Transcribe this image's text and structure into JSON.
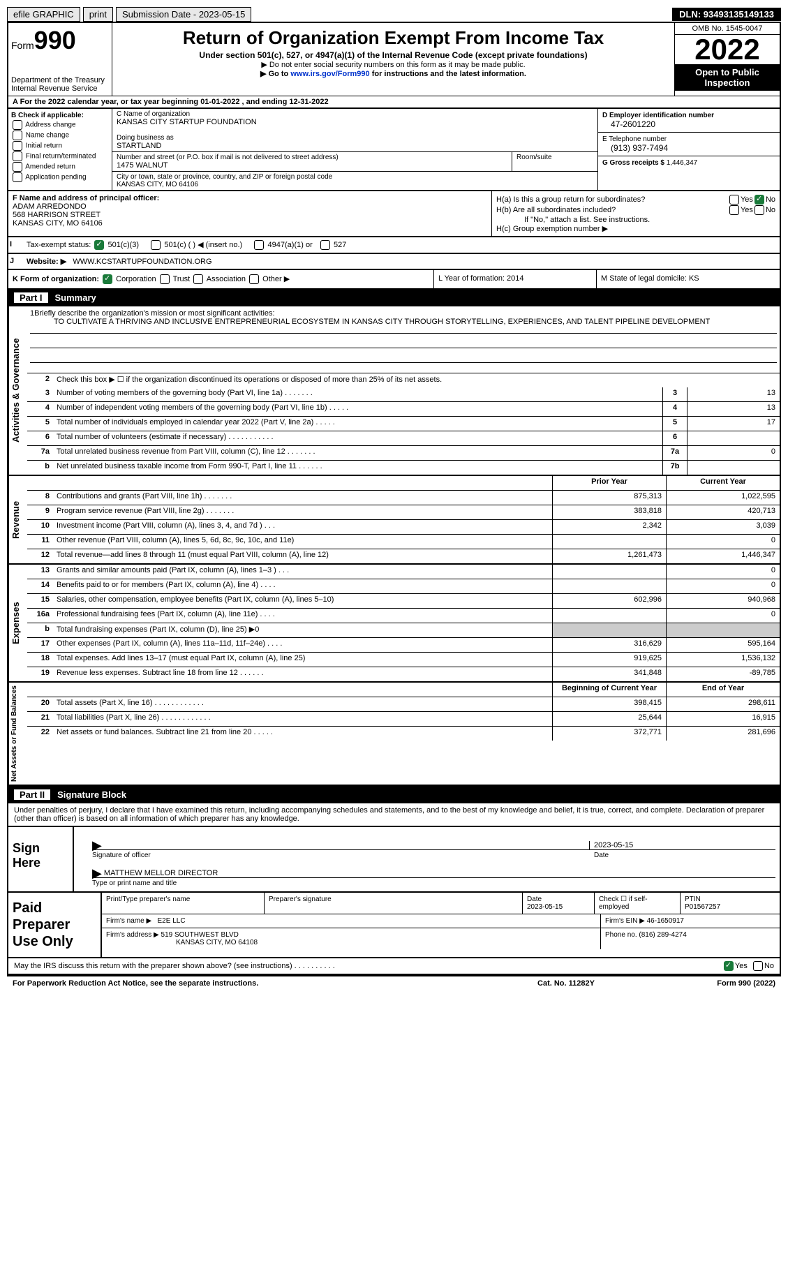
{
  "topbar": {
    "efile": "efile GRAPHIC",
    "print": "print",
    "submission": "Submission Date - 2023-05-15",
    "dln": "DLN: 93493135149133"
  },
  "header": {
    "form_label": "Form",
    "form_num": "990",
    "dept": "Department of the Treasury",
    "irs": "Internal Revenue Service",
    "title": "Return of Organization Exempt From Income Tax",
    "sub1": "Under section 501(c), 527, or 4947(a)(1) of the Internal Revenue Code (except private foundations)",
    "sub2": "▶ Do not enter social security numbers on this form as it may be made public.",
    "sub3_pre": "▶ Go to ",
    "sub3_link": "www.irs.gov/Form990",
    "sub3_post": " for instructions and the latest information.",
    "omb": "OMB No. 1545-0047",
    "year": "2022",
    "open": "Open to Public Inspection"
  },
  "row_a": "A For the 2022 calendar year, or tax year beginning 01-01-2022    , and ending 12-31-2022",
  "col_b": {
    "title": "B Check if applicable:",
    "opts": [
      "Address change",
      "Name change",
      "Initial return",
      "Final return/terminated",
      "Amended return",
      "Application pending"
    ]
  },
  "col_c": {
    "name_label": "C Name of organization",
    "name": "KANSAS CITY STARTUP FOUNDATION",
    "dba_label": "Doing business as",
    "dba": "STARTLAND",
    "street_label": "Number and street (or P.O. box if mail is not delivered to street address)",
    "street": "1475 WALNUT",
    "room_label": "Room/suite",
    "city_label": "City or town, state or province, country, and ZIP or foreign postal code",
    "city": "KANSAS CITY, MO   64106"
  },
  "col_d": {
    "ein_label": "D Employer identification number",
    "ein": "47-2601220",
    "phone_label": "E Telephone number",
    "phone": "(913) 937-7494",
    "gross_label": "G Gross receipts $",
    "gross": "1,446,347"
  },
  "col_f": {
    "label": "F Name and address of principal officer:",
    "name": "ADAM ARREDONDO",
    "street": "568 HARRISON STREET",
    "city": "KANSAS CITY, MO  64106"
  },
  "col_h": {
    "ha_label": "H(a)  Is this a group return for subordinates?",
    "hb_label": "H(b)  Are all subordinates included?",
    "hb_note": "If \"No,\" attach a list. See instructions.",
    "hc_label": "H(c)  Group exemption number ▶"
  },
  "row_i": {
    "label": "Tax-exempt status:",
    "o1": "501(c)(3)",
    "o2": "501(c) (  ) ◀ (insert no.)",
    "o3": "4947(a)(1) or",
    "o4": "527"
  },
  "row_j": {
    "label": "Website: ▶",
    "val": "WWW.KCSTARTUPFOUNDATION.ORG"
  },
  "row_k": {
    "left_label": "K Form of organization:",
    "o1": "Corporation",
    "o2": "Trust",
    "o3": "Association",
    "o4": "Other ▶",
    "mid": "L Year of formation: 2014",
    "right": "M State of legal domicile: KS"
  },
  "part1": {
    "num": "Part I",
    "title": "Summary"
  },
  "mission": {
    "label": "Briefly describe the organization's mission or most significant activities:",
    "text": "TO CULTIVATE A THRIVING AND INCLUSIVE ENTREPRENEURIAL ECOSYSTEM IN KANSAS CITY THROUGH STORYTELLING, EXPERIENCES, AND TALENT PIPELINE DEVELOPMENT"
  },
  "lines": {
    "l2": "Check this box ▶ ☐ if the organization discontinued its operations or disposed of more than 25% of its net assets.",
    "l3": {
      "d": "Number of voting members of the governing body (Part VI, line 1a)   .    .    .    .    .    .    .",
      "v": "13"
    },
    "l4": {
      "d": "Number of independent voting members of the governing body (Part VI, line 1b)   .    .    .    .    .",
      "v": "13"
    },
    "l5": {
      "d": "Total number of individuals employed in calendar year 2022 (Part V, line 2a)   .    .    .    .    .",
      "v": "17"
    },
    "l6": {
      "d": "Total number of volunteers (estimate if necessary)    .    .    .    .    .    .    .    .    .    .    .",
      "v": ""
    },
    "l7a": {
      "d": "Total unrelated business revenue from Part VIII, column (C), line 12   .    .    .    .    .    .    .",
      "v": "0"
    },
    "l7b": {
      "d": "Net unrelated business taxable income from Form 990-T, Part I, line 11   .    .    .    .    .    .",
      "v": ""
    }
  },
  "rev_hdr": {
    "prior": "Prior Year",
    "curr": "Current Year"
  },
  "revenue": [
    {
      "n": "8",
      "d": "Contributions and grants (Part VIII, line 1h)   .    .    .    .    .    .    .",
      "p": "875,313",
      "c": "1,022,595"
    },
    {
      "n": "9",
      "d": "Program service revenue (Part VIII, line 2g)    .    .    .    .    .    .    .",
      "p": "383,818",
      "c": "420,713"
    },
    {
      "n": "10",
      "d": "Investment income (Part VIII, column (A), lines 3, 4, and 7d )    .    .    .",
      "p": "2,342",
      "c": "3,039"
    },
    {
      "n": "11",
      "d": "Other revenue (Part VIII, column (A), lines 5, 6d, 8c, 9c, 10c, and 11e)",
      "p": "",
      "c": "0"
    },
    {
      "n": "12",
      "d": "Total revenue—add lines 8 through 11 (must equal Part VIII, column (A), line 12)",
      "p": "1,261,473",
      "c": "1,446,347"
    }
  ],
  "expenses": [
    {
      "n": "13",
      "d": "Grants and similar amounts paid (Part IX, column (A), lines 1–3 )   .    .    .",
      "p": "",
      "c": "0"
    },
    {
      "n": "14",
      "d": "Benefits paid to or for members (Part IX, column (A), line 4)   .    .    .    .",
      "p": "",
      "c": "0"
    },
    {
      "n": "15",
      "d": "Salaries, other compensation, employee benefits (Part IX, column (A), lines 5–10)",
      "p": "602,996",
      "c": "940,968"
    },
    {
      "n": "16a",
      "d": "Professional fundraising fees (Part IX, column (A), line 11e)   .    .    .    .",
      "p": "",
      "c": "0"
    },
    {
      "n": "b",
      "d": "Total fundraising expenses (Part IX, column (D), line 25) ▶0",
      "p": null,
      "c": null
    },
    {
      "n": "17",
      "d": "Other expenses (Part IX, column (A), lines 11a–11d, 11f–24e)   .    .    .    .",
      "p": "316,629",
      "c": "595,164"
    },
    {
      "n": "18",
      "d": "Total expenses. Add lines 13–17 (must equal Part IX, column (A), line 25)",
      "p": "919,625",
      "c": "1,536,132"
    },
    {
      "n": "19",
      "d": "Revenue less expenses. Subtract line 18 from line 12   .    .    .    .    .    .",
      "p": "341,848",
      "c": "-89,785"
    }
  ],
  "net_hdr": {
    "beg": "Beginning of Current Year",
    "end": "End of Year"
  },
  "netassets": [
    {
      "n": "20",
      "d": "Total assets (Part X, line 16)   .    .    .    .    .    .    .    .    .    .    .    .",
      "p": "398,415",
      "c": "298,611"
    },
    {
      "n": "21",
      "d": "Total liabilities (Part X, line 26)   .    .    .    .    .    .    .    .    .    .    .    .",
      "p": "25,644",
      "c": "16,915"
    },
    {
      "n": "22",
      "d": "Net assets or fund balances. Subtract line 21 from line 20   .    .    .    .    .",
      "p": "372,771",
      "c": "281,696"
    }
  ],
  "part2": {
    "num": "Part II",
    "title": "Signature Block"
  },
  "sig_intro": "Under penalties of perjury, I declare that I have examined this return, including accompanying schedules and statements, and to the best of my knowledge and belief, it is true, correct, and complete. Declaration of preparer (other than officer) is based on all information of which preparer has any knowledge.",
  "sign": {
    "label": "Sign Here",
    "date": "2023-05-15",
    "sig_of": "Signature of officer",
    "date_l": "Date",
    "name": "MATTHEW MELLOR  DIRECTOR",
    "name_l": "Type or print name and title"
  },
  "paid": {
    "label": "Paid Preparer Use Only",
    "r1": {
      "a": "Print/Type preparer's name",
      "b": "Preparer's signature",
      "c_l": "Date",
      "c": "2023-05-15",
      "d": "Check ☐ if self-employed",
      "e_l": "PTIN",
      "e": "P01567257"
    },
    "r2": {
      "a_l": "Firm's name      ▶",
      "a": "E2E LLC",
      "b_l": "Firm's EIN ▶",
      "b": "46-1650917"
    },
    "r3": {
      "a_l": "Firm's address ▶",
      "a": "519 SOUTHWEST BLVD",
      "a2": "KANSAS CITY, MO  64108",
      "b_l": "Phone no.",
      "b": "(816) 289-4274"
    }
  },
  "footer1": "May the IRS discuss this return with the preparer shown above? (see instructions)    .    .    .    .    .    .    .    .    .    .",
  "footer2": {
    "l": "For Paperwork Reduction Act Notice, see the separate instructions.",
    "m": "Cat. No. 11282Y",
    "r": "Form 990 (2022)"
  },
  "vert": {
    "ag": "Activities & Governance",
    "rev": "Revenue",
    "exp": "Expenses",
    "net": "Net Assets or Fund Balances"
  }
}
